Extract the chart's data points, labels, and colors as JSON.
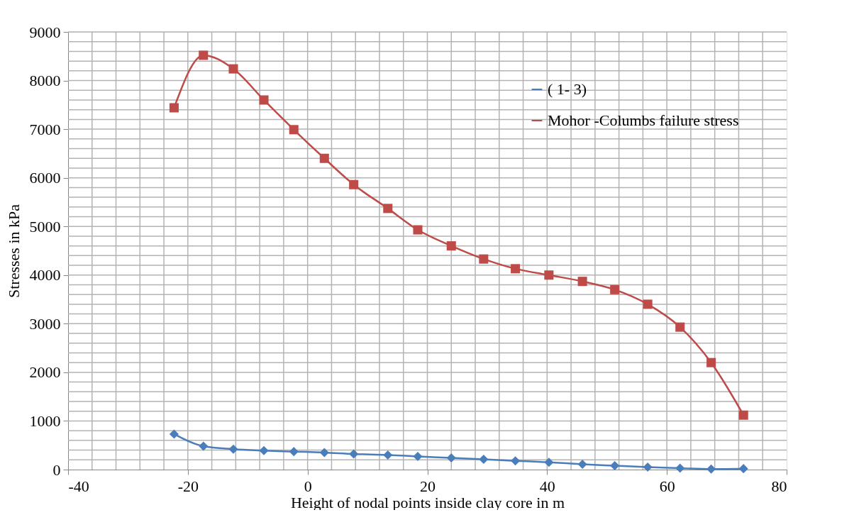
{
  "chart_data": {
    "type": "line",
    "xlabel": "Height of nodal points inside clay core in m",
    "ylabel": "Stresses in kPa",
    "x": [
      -22.3,
      -17.4,
      -12.4,
      -7.3,
      -2.3,
      2.8,
      7.7,
      13.4,
      18.4,
      24.0,
      29.4,
      34.7,
      40.3,
      45.9,
      51.3,
      56.8,
      62.2,
      67.4,
      72.8
    ],
    "series": [
      {
        "name": "(   1-    3)",
        "color": "#4a7ebb",
        "marker": "diamond",
        "values": [
          730,
          480,
          420,
          390,
          370,
          350,
          320,
          300,
          270,
          240,
          210,
          180,
          150,
          110,
          80,
          50,
          30,
          10,
          20
        ]
      },
      {
        "name": "Mohor -Columbs failure stress",
        "color": "#be4b48",
        "marker": "square",
        "values": [
          7440,
          8520,
          8240,
          7600,
          6990,
          6400,
          5860,
          5370,
          4930,
          4600,
          4330,
          4130,
          4000,
          3870,
          3700,
          3400,
          2930,
          2200,
          1120
        ]
      }
    ],
    "xlim": [
      -40,
      80
    ],
    "xticks": [
      -40,
      -20,
      0,
      20,
      40,
      60,
      80
    ],
    "ylim": [
      0,
      9000
    ],
    "yticks": [
      0,
      1000,
      2000,
      3000,
      4000,
      5000,
      6000,
      7000,
      8000,
      9000
    ],
    "grid": true,
    "legend": "top right",
    "line_style": "solid"
  }
}
